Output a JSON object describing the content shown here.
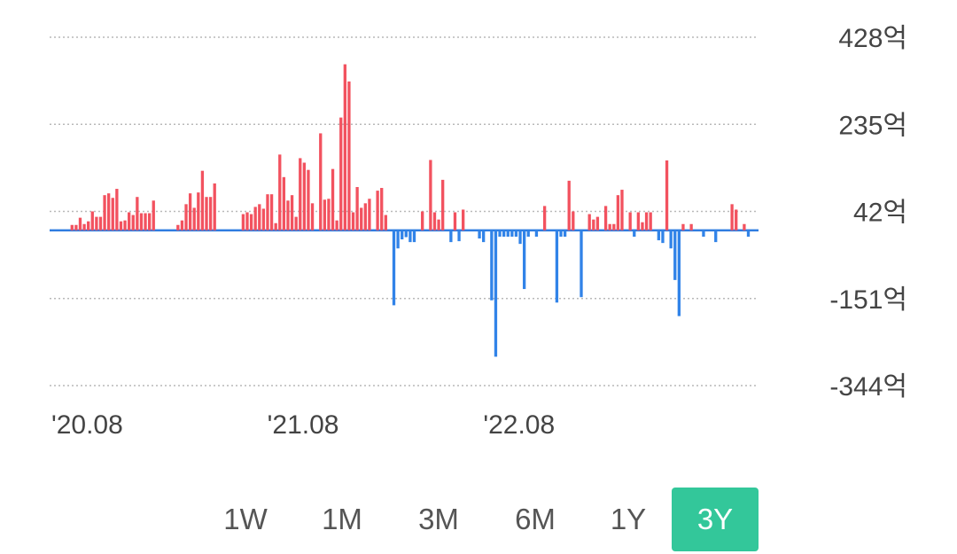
{
  "chart_data": {
    "type": "bar",
    "title": "",
    "xlabel": "",
    "ylabel": "",
    "unit": "억",
    "y_ticks": [
      "428억",
      "235억",
      "42억",
      "-151억",
      "-344억"
    ],
    "y_tick_values": [
      428,
      235,
      42,
      -151,
      -344
    ],
    "ylim": [
      -344,
      428
    ],
    "x_ticks": [
      "'20.08",
      "'21.08",
      "'22.08"
    ],
    "x_tick_index": [
      0,
      53,
      106
    ],
    "grid": true,
    "positive_color": "#f2525f",
    "negative_color": "#3183e8",
    "values": [
      0,
      0,
      0,
      0,
      0,
      12,
      12,
      28,
      14,
      20,
      42,
      30,
      30,
      78,
      82,
      72,
      92,
      20,
      22,
      40,
      34,
      74,
      38,
      38,
      38,
      66,
      0,
      0,
      0,
      0,
      0,
      12,
      22,
      58,
      82,
      50,
      84,
      132,
      74,
      74,
      104,
      0,
      0,
      0,
      0,
      0,
      0,
      36,
      40,
      36,
      52,
      58,
      48,
      80,
      80,
      16,
      168,
      118,
      66,
      78,
      30,
      160,
      150,
      134,
      60,
      0,
      215,
      68,
      70,
      136,
      22,
      250,
      368,
      330,
      40,
      96,
      50,
      60,
      70,
      0,
      88,
      94,
      34,
      0,
      -166,
      -40,
      -20,
      -15,
      -26,
      -26,
      0,
      42,
      0,
      156,
      40,
      24,
      112,
      0,
      -26,
      40,
      -24,
      46,
      0,
      0,
      0,
      -18,
      -26,
      0,
      -155,
      -280,
      -14,
      -14,
      -14,
      -14,
      -14,
      -30,
      -130,
      -14,
      0,
      -14,
      0,
      54,
      0,
      0,
      -160,
      -14,
      -14,
      110,
      42,
      0,
      -148,
      0,
      36,
      24,
      30,
      0,
      54,
      14,
      14,
      78,
      90,
      0,
      40,
      -14,
      40,
      18,
      40,
      40,
      0,
      -22,
      -28,
      155,
      -40,
      -110,
      -190,
      14,
      0,
      14,
      0,
      0,
      -14,
      0,
      0,
      -26,
      0,
      0,
      0,
      58,
      46,
      0,
      14,
      -14,
      0,
      0
    ]
  },
  "range_selector": {
    "options": [
      "1W",
      "1M",
      "3M",
      "6M",
      "1Y",
      "3Y"
    ],
    "active": "3Y"
  }
}
